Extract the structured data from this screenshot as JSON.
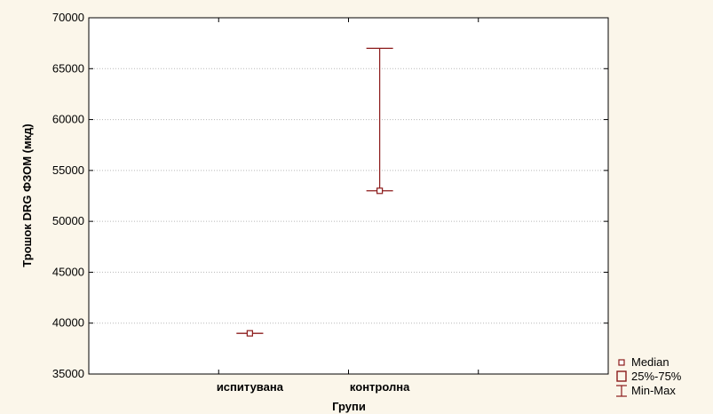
{
  "chart_data": {
    "type": "box",
    "xlabel": "Групи",
    "ylabel": "Трошок DRG ФЗОМ (мкд)",
    "ylim": [
      35000,
      70000
    ],
    "y_ticks": [
      35000,
      40000,
      45000,
      50000,
      55000,
      60000,
      65000,
      70000
    ],
    "categories": [
      "испитувана",
      "контролна"
    ],
    "stats": [
      {
        "category": "испитувана",
        "median": 39000,
        "q1": 39000,
        "q3": 39000,
        "min": 39000,
        "max": 39000
      },
      {
        "category": "контролна",
        "median": 53000,
        "q1": 53000,
        "q3": 53000,
        "min": 53000,
        "max": 67000
      }
    ],
    "grid": true,
    "legend_position": "bottom-right",
    "legend": [
      {
        "label": "Median",
        "symbol": "small-square"
      },
      {
        "label": "25%-75%",
        "symbol": "box"
      },
      {
        "label": "Min-Max",
        "symbol": "whisker"
      }
    ],
    "colors": {
      "series": "#8b1a1a",
      "plot_background": "#ffffff",
      "frame_background": "#fbf6ea",
      "grid": "#b8b8b8"
    }
  }
}
